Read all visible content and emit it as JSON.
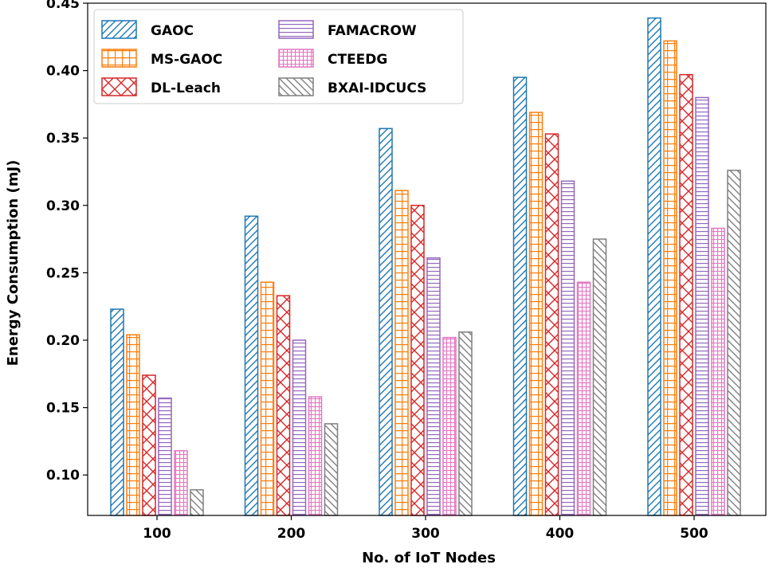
{
  "chart_data": {
    "type": "bar",
    "title": "",
    "xlabel": "No. of IoT Nodes",
    "ylabel": "Energy Consumption (mJ)",
    "categories": [
      "100",
      "200",
      "300",
      "400",
      "500"
    ],
    "ylim": [
      0.07,
      0.45
    ],
    "yticks": [
      0.1,
      0.15,
      0.2,
      0.25,
      0.3,
      0.35,
      0.4,
      0.45
    ],
    "ytick_labels": [
      "0.10",
      "0.15",
      "0.20",
      "0.25",
      "0.30",
      "0.35",
      "0.40",
      "0.45"
    ],
    "legend_position": "top-left",
    "series": [
      {
        "name": "GAOC",
        "color": "#1f77b4",
        "hatch": "diagonal",
        "values": [
          0.223,
          0.292,
          0.357,
          0.395,
          0.439
        ]
      },
      {
        "name": "MS-GAOC",
        "color": "#ff7f0e",
        "hatch": "grid",
        "values": [
          0.204,
          0.243,
          0.311,
          0.369,
          0.422
        ]
      },
      {
        "name": "DL-Leach",
        "color": "#d62728",
        "hatch": "cross",
        "values": [
          0.174,
          0.233,
          0.3,
          0.353,
          0.397
        ]
      },
      {
        "name": "FAMACROW",
        "color": "#9467bd",
        "hatch": "horizontal",
        "values": [
          0.157,
          0.2,
          0.261,
          0.318,
          0.38
        ]
      },
      {
        "name": "CTEEDG",
        "color": "#e377c2",
        "hatch": "smallgrid",
        "values": [
          0.118,
          0.158,
          0.202,
          0.243,
          0.283
        ]
      },
      {
        "name": "BXAI-IDCUCS",
        "color": "#7f7f7f",
        "hatch": "antidiagonal",
        "values": [
          0.089,
          0.138,
          0.206,
          0.275,
          0.326
        ]
      }
    ]
  }
}
